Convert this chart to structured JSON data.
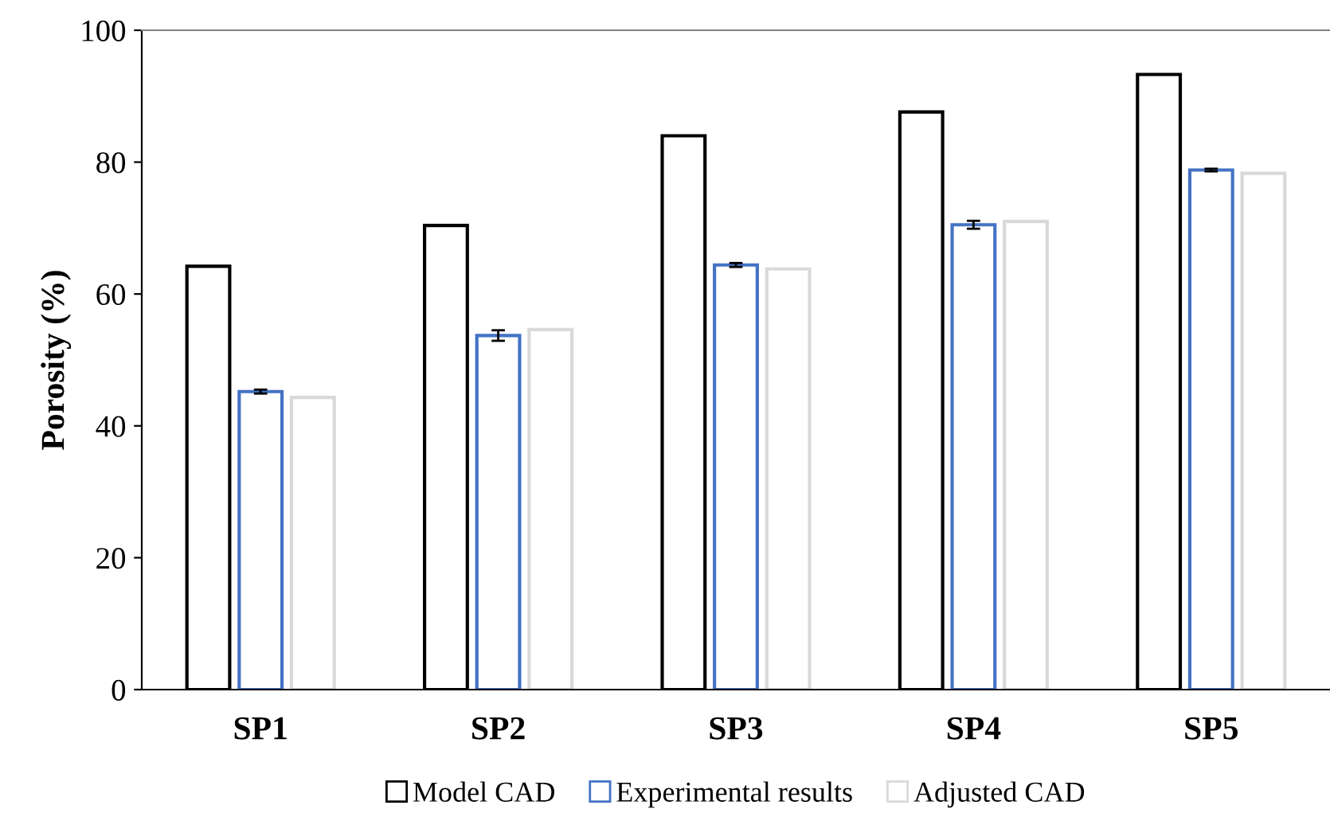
{
  "chart_data": {
    "type": "bar",
    "ylabel": "Porosity (%)",
    "categories": [
      "SP1",
      "SP2",
      "SP3",
      "SP4",
      "SP5"
    ],
    "series": [
      {
        "name": "Model CAD",
        "color": "#000000",
        "values": [
          64.2,
          70.4,
          84.0,
          87.6,
          93.3
        ]
      },
      {
        "name": "Experimental results",
        "color": "#4472c4",
        "values": [
          45.2,
          53.7,
          64.4,
          70.5,
          78.8
        ],
        "errors": [
          0.3,
          0.8,
          0.3,
          0.6,
          0.2
        ]
      },
      {
        "name": "Adjusted CAD",
        "color": "#d9d9d9",
        "values": [
          44.3,
          54.6,
          63.8,
          71.0,
          78.3
        ]
      }
    ],
    "ylim": [
      0,
      100
    ],
    "yticks": [
      0,
      20,
      40,
      60,
      80,
      100
    ],
    "grid": false,
    "legend": "bottom"
  }
}
